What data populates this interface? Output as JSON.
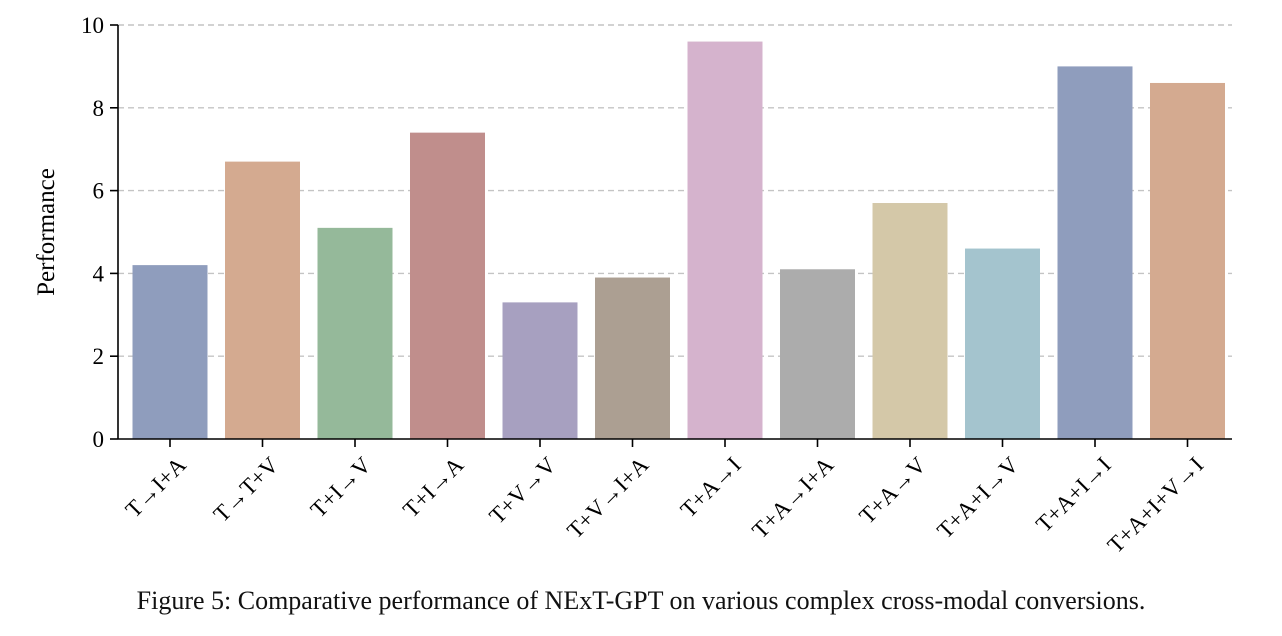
{
  "chart_data": {
    "type": "bar",
    "title": "",
    "xlabel": "",
    "ylabel": "Performance",
    "ylim": [
      0,
      10
    ],
    "yticks": [
      0,
      2,
      4,
      6,
      8,
      10
    ],
    "grid": "horizontal-dashed",
    "categories": [
      "T→I+A",
      "T→T+V",
      "T+I→V",
      "T+I→A",
      "T+V→V",
      "T+V→I+A",
      "T+A→I",
      "T+A→I+A",
      "T+A→V",
      "T+A+I→V",
      "T+A+I→I",
      "T+A+I+V→I"
    ],
    "values": [
      4.2,
      6.7,
      5.1,
      7.4,
      3.3,
      3.9,
      9.6,
      4.1,
      5.7,
      4.6,
      9.0,
      8.6
    ],
    "colors": [
      "#8f9dbd",
      "#d4aa90",
      "#95b99a",
      "#c08e8c",
      "#a7a0c0",
      "#ac9f92",
      "#d5b3cd",
      "#acacac",
      "#d4c8a8",
      "#a4c4ce",
      "#8f9dbd",
      "#d4aa90"
    ]
  },
  "caption": "Figure 5: Comparative performance of NExT-GPT on various complex cross-modal conversions."
}
